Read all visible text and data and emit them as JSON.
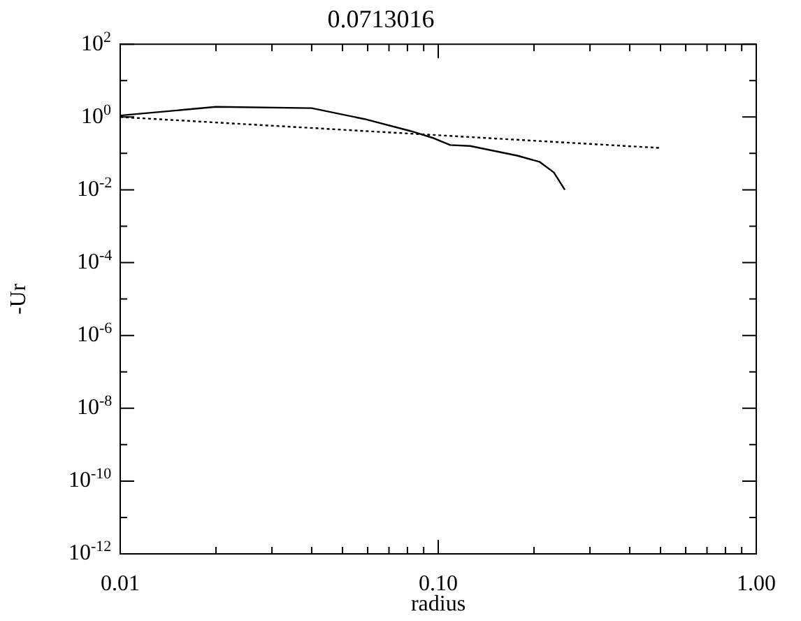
{
  "chart_data": {
    "type": "line",
    "title": "0.0713016",
    "xlabel": "radius",
    "ylabel": "-Ur",
    "log": "xy",
    "grid": false,
    "legend": false,
    "marker": "none",
    "xlim": [
      0.01,
      1
    ],
    "xticks": [
      {
        "value": 0.01,
        "label": "0.01"
      },
      {
        "value": 0.02,
        "label": null
      },
      {
        "value": 0.03,
        "label": null
      },
      {
        "value": 0.04,
        "label": null
      },
      {
        "value": 0.05,
        "label": null
      },
      {
        "value": 0.06,
        "label": null
      },
      {
        "value": 0.07,
        "label": null
      },
      {
        "value": 0.08,
        "label": null
      },
      {
        "value": 0.09,
        "label": null
      },
      {
        "value": 0.1,
        "label": "0.10"
      },
      {
        "value": 0.2,
        "label": null
      },
      {
        "value": 0.3,
        "label": null
      },
      {
        "value": 0.4,
        "label": null
      },
      {
        "value": 0.5,
        "label": null
      },
      {
        "value": 0.6,
        "label": null
      },
      {
        "value": 0.7,
        "label": null
      },
      {
        "value": 0.8,
        "label": null
      },
      {
        "value": 0.9,
        "label": null
      },
      {
        "value": 1,
        "label": "1.00"
      }
    ],
    "ylim": [
      1e-12,
      100
    ],
    "yticks": [
      {
        "value": 1e-12,
        "label": "10$^{-12}$"
      },
      {
        "value": 1e-11,
        "label": null
      },
      {
        "value": 1e-10,
        "label": "10$^{-10}$"
      },
      {
        "value": 1e-09,
        "label": null
      },
      {
        "value": 1e-08,
        "label": "10$^{-8}$"
      },
      {
        "value": 1e-07,
        "label": null
      },
      {
        "value": 1e-06,
        "label": "10$^{-6}$"
      },
      {
        "value": 1e-05,
        "label": null
      },
      {
        "value": 0.0001,
        "label": "10$^{-4}$"
      },
      {
        "value": 0.001,
        "label": null
      },
      {
        "value": 0.01,
        "label": "10$^{-2}$"
      },
      {
        "value": 0.1,
        "label": null
      },
      {
        "value": 1,
        "label": "10$^{0}$"
      },
      {
        "value": 10,
        "label": null
      },
      {
        "value": 100,
        "label": "10$^{2}$"
      }
    ],
    "series": [
      {
        "color": "#000000",
        "line_style": "solid",
        "x": [
          0.01,
          0.02,
          0.04,
          0.0586,
          0.082,
          0.097,
          0.109,
          0.126,
          0.177,
          0.208,
          0.231,
          0.25
        ],
        "values": [
          1.1,
          1.9,
          1.75,
          0.88,
          0.41,
          0.26,
          0.17,
          0.16,
          0.087,
          0.059,
          0.03,
          0.01
        ]
      },
      {
        "color": "#000000",
        "line_style": "dotted",
        "x": [
          0.01,
          0.1,
          0.5
        ],
        "values": [
          1,
          0.316,
          0.141
        ]
      }
    ]
  }
}
